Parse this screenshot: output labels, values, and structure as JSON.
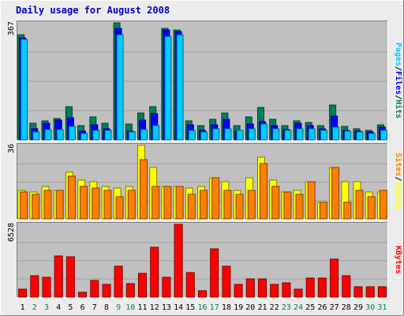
{
  "chart_data": {
    "type": "bar",
    "title": "Daily usage for August 2008",
    "colors": {
      "background": "#ececec",
      "plot": "#c0c0c0",
      "grid": "#a0a0a0",
      "title": "#0000cc",
      "hits": "#00805c",
      "files": "#0000ff",
      "pages": "#00ccff",
      "visits": "#ffff00",
      "sites": "#ff8000",
      "kbytes": "#ff0000",
      "weekday_label": "#000000",
      "weekend_label": "#00805c"
    },
    "days": [
      "1",
      "2",
      "3",
      "4",
      "5",
      "6",
      "7",
      "8",
      "9",
      "10",
      "11",
      "12",
      "13",
      "14",
      "15",
      "16",
      "17",
      "18",
      "19",
      "20",
      "21",
      "22",
      "23",
      "24",
      "25",
      "26",
      "27",
      "28",
      "29",
      "30",
      "31"
    ],
    "weekend_days": [
      "2",
      "3",
      "9",
      "10",
      "16",
      "17",
      "23",
      "24",
      "30",
      "31"
    ],
    "panels": [
      {
        "id": "hits-panel",
        "axis_max_label": "367",
        "max": 367,
        "side_labels": [
          {
            "text": "Pages",
            "color": "#00ccff"
          },
          {
            "text": "Files",
            "color": "#0000ff"
          },
          {
            "text": "Hits",
            "color": "#00805c"
          }
        ],
        "series": [
          {
            "name": "Hits",
            "values": [
              330,
              52,
              60,
              68,
              105,
              45,
              72,
              52,
              367,
              50,
              85,
              105,
              350,
              345,
              60,
              45,
              65,
              85,
              45,
              72,
              102,
              65,
              45,
              60,
              55,
              45,
              110,
              42,
              35,
              30,
              48
            ]
          },
          {
            "name": "Files",
            "values": [
              320,
              35,
              52,
              62,
              70,
              28,
              48,
              35,
              350,
              28,
              62,
              82,
              345,
              340,
              48,
              30,
              48,
              65,
              28,
              50,
              58,
              45,
              32,
              52,
              45,
              35,
              75,
              30,
              28,
              25,
              40
            ]
          },
          {
            "name": "Pages",
            "values": [
              315,
              25,
              32,
              32,
              42,
              20,
              30,
              30,
              330,
              25,
              32,
              45,
              325,
              330,
              30,
              25,
              35,
              35,
              30,
              35,
              50,
              35,
              30,
              35,
              35,
              30,
              40,
              28,
              25,
              20,
              30
            ]
          }
        ]
      },
      {
        "id": "visits-panel",
        "axis_max_label": "36",
        "max": 36,
        "side_labels": [
          {
            "text": "Sites",
            "color": "#ff8000"
          },
          {
            "text": "Visits",
            "color": "#ffff00"
          }
        ],
        "series": [
          {
            "name": "Visits",
            "values": [
              14,
              13,
              16,
              14,
              23,
              19,
              18,
              16,
              15,
              16,
              36,
              25,
              16,
              16,
              15,
              16,
              20,
              18,
              14,
              20,
              30,
              19,
              13,
              14,
              18,
              8,
              25,
              18,
              18,
              13,
              13
            ]
          },
          {
            "name": "Sites",
            "values": [
              13,
              12,
              14,
              14,
              21,
              16,
              15,
              14,
              11,
              14,
              29,
              16,
              16,
              16,
              12,
              14,
              20,
              14,
              12,
              14,
              27,
              16,
              13,
              12,
              18,
              8,
              25,
              8,
              14,
              11,
              14
            ]
          }
        ]
      },
      {
        "id": "kbytes-panel",
        "axis_max_label": "6528",
        "max": 6528,
        "side_labels": [
          {
            "text": "KBytes",
            "color": "#ff0000"
          }
        ],
        "series": [
          {
            "name": "KBytes",
            "values": [
              700,
              1900,
              1800,
              3700,
              3600,
              400,
              1500,
              1100,
              2800,
              1200,
              2100,
              4500,
              1800,
              6528,
              2200,
              600,
              4300,
              2800,
              1100,
              1600,
              1600,
              1100,
              1300,
              700,
              1700,
              1700,
              3400,
              1900,
              900,
              900,
              900
            ]
          }
        ]
      }
    ]
  }
}
